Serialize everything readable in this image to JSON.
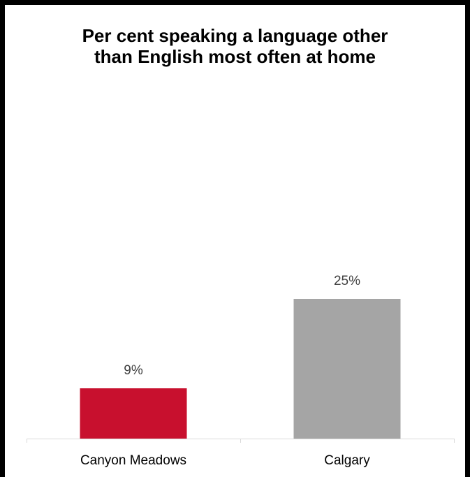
{
  "chart_data": {
    "type": "bar",
    "title": "Per cent speaking a language other than English most often at home",
    "xlabel": "",
    "ylabel": "",
    "categories": [
      "Canyon Meadows",
      "Calgary"
    ],
    "values": [
      9,
      25
    ],
    "data_labels": [
      "9%",
      "25%"
    ],
    "colors": [
      "#C8102E",
      "#A5A5A5"
    ],
    "ylim": [
      0,
      35
    ],
    "grid": false,
    "legend": "none"
  }
}
